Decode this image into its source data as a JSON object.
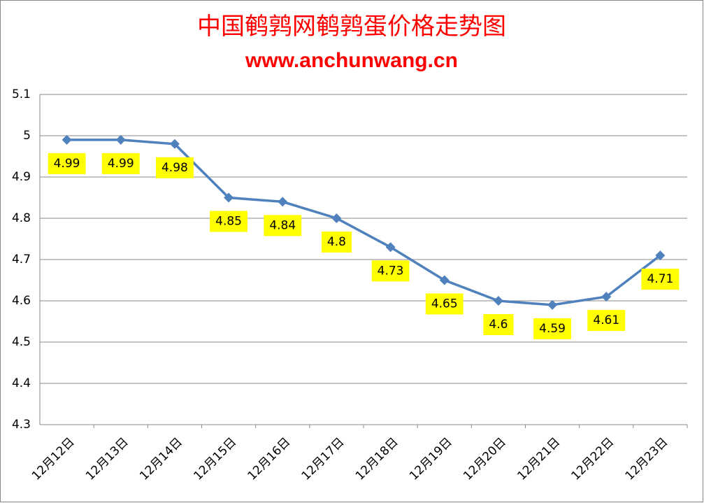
{
  "chart_data": {
    "type": "line",
    "title": "中国鹌鹑网鹌鹑蛋价格走势图",
    "subtitle": "www.anchunwang.cn",
    "categories": [
      "12月12日",
      "12月13日",
      "12月14日",
      "12月15日",
      "12月16日",
      "12月17日",
      "12月18日",
      "12月19日",
      "12月20日",
      "12月21日",
      "12月22日",
      "12月23日"
    ],
    "values": [
      4.99,
      4.99,
      4.98,
      4.85,
      4.84,
      4.8,
      4.73,
      4.65,
      4.6,
      4.59,
      4.61,
      4.71
    ],
    "color": "#4f81bd",
    "label_color": "#ffff00",
    "ylim": [
      4.3,
      5.1
    ],
    "yticks": [
      4.3,
      4.4,
      4.5,
      4.6,
      4.7,
      4.8,
      4.9,
      5,
      5.1
    ],
    "grid": true
  }
}
